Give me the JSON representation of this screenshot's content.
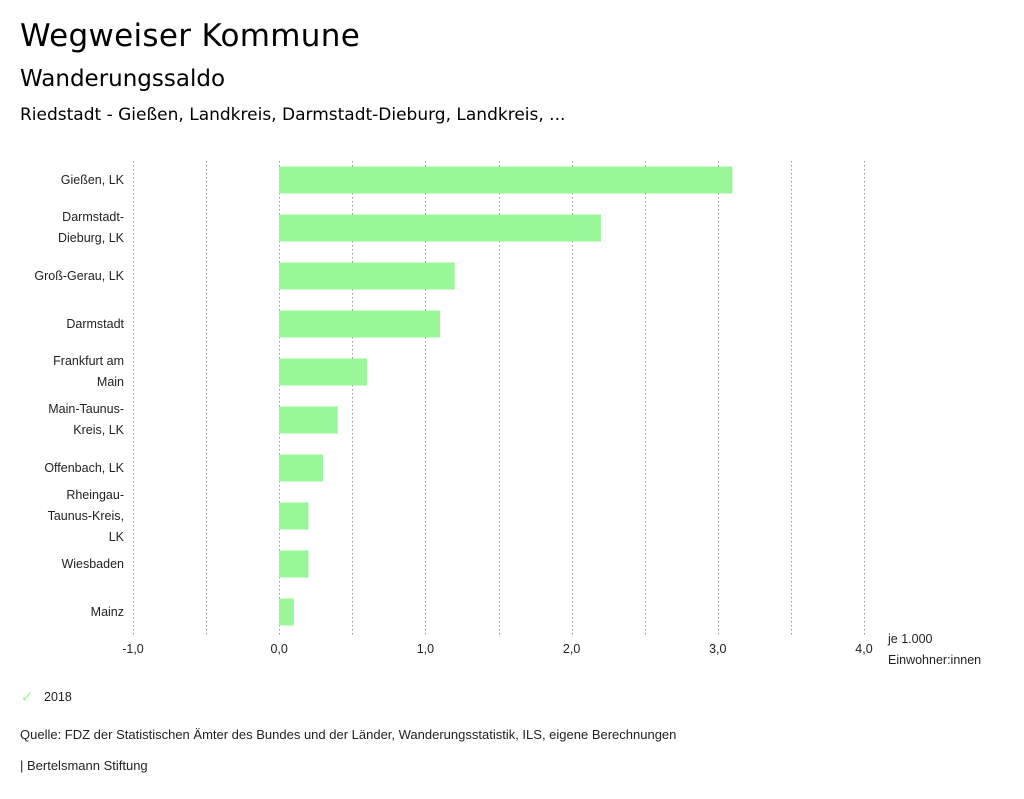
{
  "header": {
    "title": "Wegweiser Kommune",
    "subtitle": "Wanderungssaldo",
    "context": "Riedstadt - Gießen, Landkreis, Darmstadt-Dieburg, Landkreis, ..."
  },
  "colors": {
    "bar": "#98f898",
    "grid": "#999999"
  },
  "chart_data": {
    "type": "bar",
    "orientation": "horizontal",
    "categories": [
      [
        "Gießen, LK"
      ],
      [
        "Darmstadt-",
        "Dieburg, LK"
      ],
      [
        "Groß-Gerau, LK"
      ],
      [
        "Darmstadt"
      ],
      [
        "Frankfurt am",
        "Main"
      ],
      [
        "Main-Taunus-",
        "Kreis, LK"
      ],
      [
        "Offenbach, LK"
      ],
      [
        "Rheingau-",
        "Taunus-Kreis,",
        "LK"
      ],
      [
        "Wiesbaden"
      ],
      [
        "Mainz"
      ]
    ],
    "series": [
      {
        "name": "2018",
        "values": [
          3.1,
          2.2,
          1.2,
          1.1,
          0.6,
          0.4,
          0.3,
          0.2,
          0.2,
          0.1
        ]
      }
    ],
    "xlim": [
      -1.0,
      4.0
    ],
    "xticks": [
      -1.0,
      0.0,
      1.0,
      2.0,
      3.0,
      4.0
    ],
    "xtick_labels": [
      "-1,0",
      "0,0",
      "1,0",
      "2,0",
      "3,0",
      "4,0"
    ],
    "xlabel": [
      "je 1.000",
      "Einwohner:innen"
    ],
    "grid": true,
    "legend": "bottom-left"
  },
  "legend": {
    "label": "2018"
  },
  "footer": {
    "source": "Quelle: FDZ der Statistischen Ämter des Bundes und der Länder, Wanderungsstatistik, ILS, eigene Berechnungen",
    "credit": "| Bertelsmann Stiftung"
  }
}
